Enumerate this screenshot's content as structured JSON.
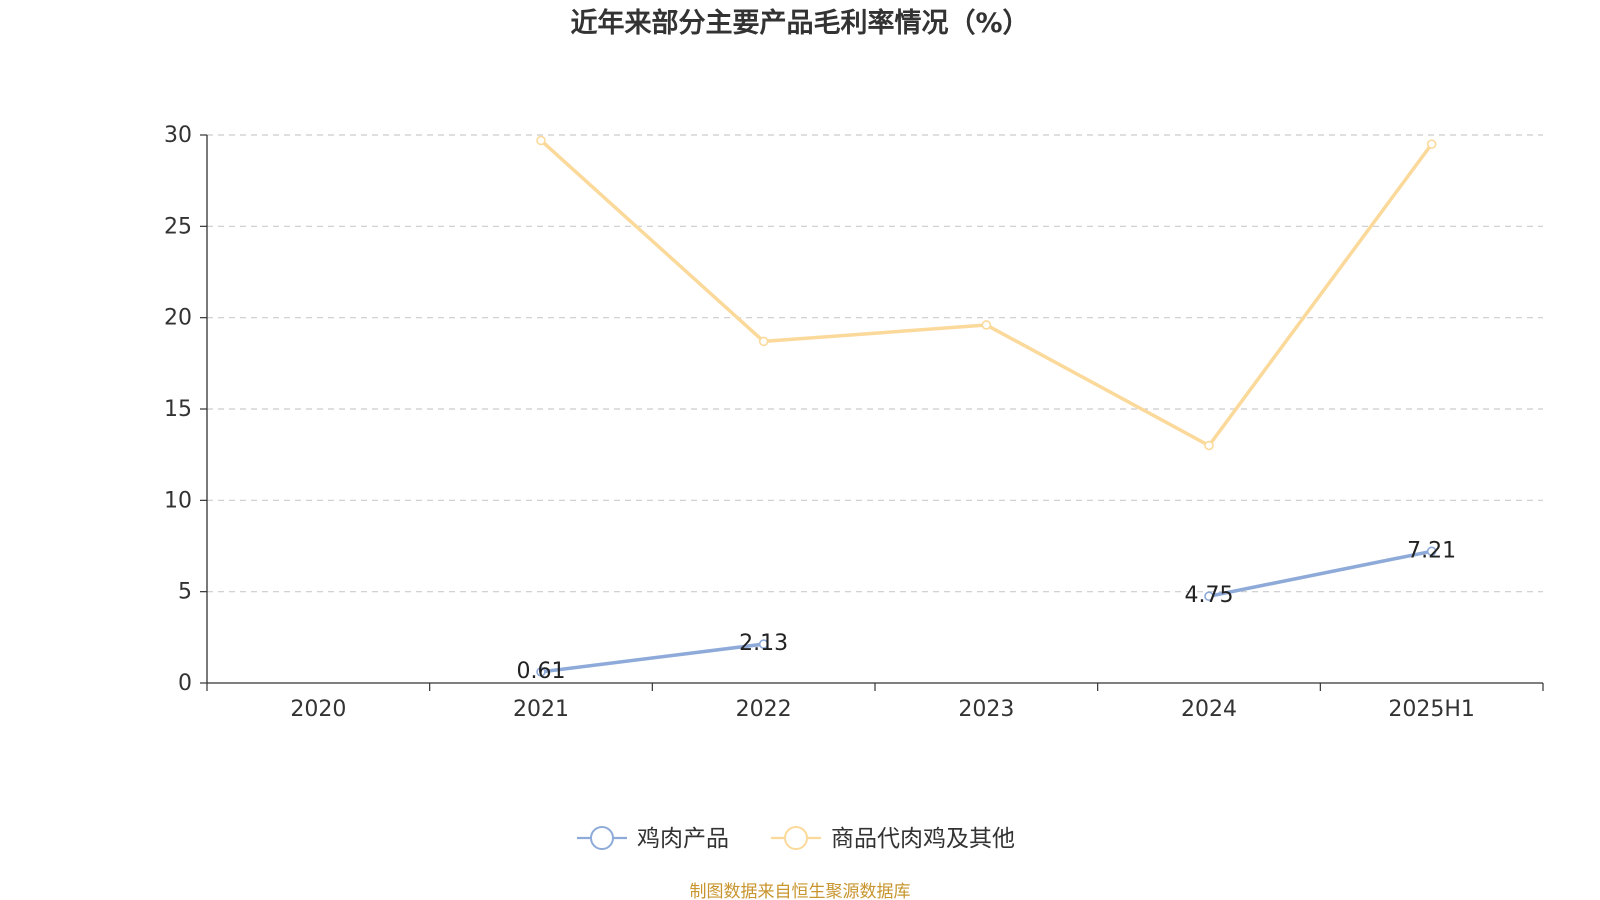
{
  "chart_data": {
    "type": "line",
    "title": "近年来部分主要产品毛利率情况（%）",
    "xlabel": "",
    "ylabel": "",
    "categories": [
      "2020",
      "2021",
      "2022",
      "2023",
      "2024",
      "2025H1"
    ],
    "ylim": [
      0,
      30
    ],
    "yticks": [
      0,
      5,
      10,
      15,
      20,
      25,
      30
    ],
    "grid": "horizontal-dashed",
    "legend_position": "bottom-center",
    "series": [
      {
        "name": "鸡肉产品",
        "color": "#8eaad8",
        "values": [
          null,
          0.61,
          2.13,
          null,
          4.75,
          7.21
        ],
        "labels": [
          null,
          "0.61",
          "2.13",
          null,
          "4.75",
          "7.21"
        ]
      },
      {
        "name": "商品代肉鸡及其他",
        "color": "#fbd99a",
        "values": [
          null,
          29.7,
          18.7,
          19.6,
          13.0,
          29.5
        ],
        "labels": [
          null,
          null,
          null,
          null,
          null,
          null
        ]
      }
    ]
  },
  "source_note": "制图数据来自恒生聚源数据库",
  "colors": {
    "axis": "#333333",
    "grid": "#cccccc",
    "source": "#c8952e"
  }
}
